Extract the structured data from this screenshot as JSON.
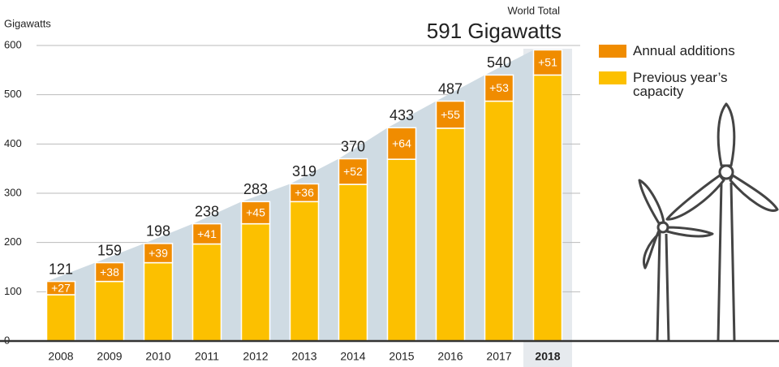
{
  "chart_data": {
    "type": "bar",
    "stacked": true,
    "y_label": "Gigawatts",
    "annotation": {
      "title": "World Total",
      "text": "591 Gigawatts"
    },
    "categories": [
      "2008",
      "2009",
      "2010",
      "2011",
      "2012",
      "2013",
      "2014",
      "2015",
      "2016",
      "2017",
      "2018"
    ],
    "highlight_category": "2018",
    "series": [
      {
        "name": "Previous year’s capacity",
        "color": "#fcc000",
        "values": [
          94,
          121,
          159,
          197,
          238,
          283,
          318,
          369,
          432,
          487,
          540
        ]
      },
      {
        "name": "Annual additions",
        "color": "#f08c00",
        "values": [
          27,
          38,
          39,
          41,
          45,
          36,
          52,
          64,
          55,
          53,
          51
        ],
        "value_labels": [
          "+27",
          "+38",
          "+39",
          "+41",
          "+45",
          "+36",
          "+52",
          "+64",
          "+55",
          "+53",
          "+51"
        ]
      }
    ],
    "total_labels": [
      "121",
      "159",
      "198",
      "238",
      "283",
      "319",
      "370",
      "433",
      "487",
      "540",
      null
    ],
    "ylim": [
      0,
      600
    ],
    "yticks": [
      0,
      100,
      200,
      300,
      400,
      500,
      600
    ],
    "grid": true
  }
}
